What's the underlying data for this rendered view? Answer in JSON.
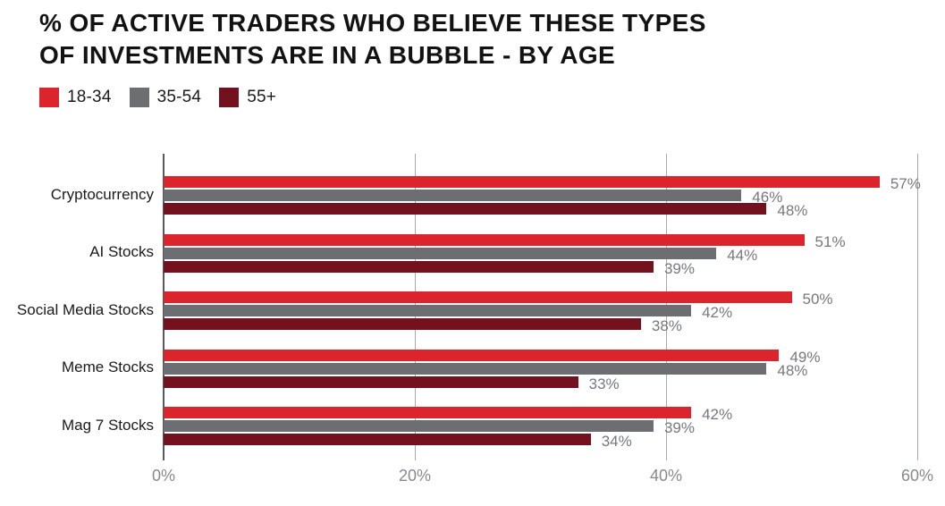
{
  "title": {
    "line1": "% OF ACTIVE TRADERS WHO BELIEVE THESE TYPES",
    "line2": "OF INVESTMENTS ARE IN A BUBBLE - BY AGE"
  },
  "chart_data": {
    "type": "bar",
    "orientation": "horizontal",
    "title": "% OF ACTIVE TRADERS WHO BELIEVE THESE TYPES OF INVESTMENTS ARE IN A BUBBLE - BY AGE",
    "categories": [
      "Cryptocurrency",
      "AI Stocks",
      "Social Media Stocks",
      "Meme Stocks",
      "Mag 7 Stocks"
    ],
    "series": [
      {
        "name": "18-34",
        "color": "#DB242B",
        "values": [
          57,
          51,
          50,
          49,
          42
        ]
      },
      {
        "name": "35-54",
        "color": "#6D6E71",
        "values": [
          46,
          44,
          42,
          48,
          39
        ]
      },
      {
        "name": "55+",
        "color": "#73121E",
        "values": [
          48,
          39,
          38,
          33,
          34
        ]
      }
    ],
    "x_axis": {
      "min": 0,
      "max": 60,
      "ticks": [
        0,
        20,
        40,
        60
      ],
      "tick_labels": [
        "0%",
        "20%",
        "40%",
        "60%"
      ]
    },
    "value_label_suffix": "%",
    "grid": "vertical",
    "legend_position": "top-left",
    "colors": {
      "axis_line": "#58595B",
      "gridline": "#A7A9AC",
      "tick_label": "#87898C",
      "value_label": "#77787B",
      "category_label": "#1A1A1A",
      "title": "#121212",
      "background": "#FFFFFF"
    }
  }
}
